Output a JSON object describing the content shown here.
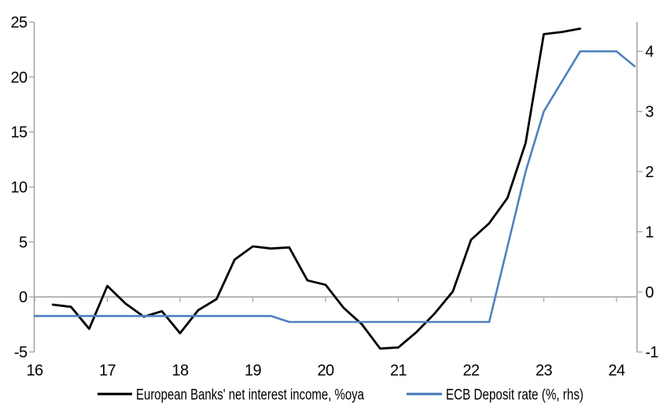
{
  "chart_data": {
    "type": "line",
    "title": "",
    "grid": "zero-line-only",
    "legend_position": "bottom",
    "x_axis": {
      "unit": "year",
      "range": [
        16,
        24.3
      ],
      "tick_values": [
        16,
        17,
        18,
        19,
        20,
        21,
        22,
        23,
        24
      ],
      "ticks": [
        "16",
        "17",
        "18",
        "19",
        "20",
        "21",
        "22",
        "23",
        "24"
      ]
    },
    "left_axis": {
      "range": [
        -5,
        25
      ],
      "tick_values": [
        25,
        20,
        15,
        10,
        5,
        0,
        -5
      ],
      "ticks": [
        "25",
        "20",
        "15",
        "10",
        "5",
        "0",
        "-5"
      ]
    },
    "right_axis": {
      "range": [
        -1,
        4.5
      ],
      "tick_values": [
        4,
        3,
        2,
        1,
        0,
        -1
      ],
      "ticks": [
        "4",
        "3",
        "2",
        "1",
        "0",
        "-1"
      ]
    },
    "series": [
      {
        "name": "European Banks' net interest income, %oya",
        "axis": "left",
        "color": "#000000",
        "x": [
          16.25,
          16.5,
          16.75,
          17.0,
          17.25,
          17.5,
          17.75,
          18.0,
          18.25,
          18.5,
          18.75,
          19.0,
          19.25,
          19.5,
          19.75,
          20.0,
          20.25,
          20.5,
          20.75,
          21.0,
          21.25,
          21.5,
          21.75,
          22.0,
          22.25,
          22.5,
          22.75,
          23.0,
          23.25,
          23.5
        ],
        "values": [
          -0.7,
          -0.9,
          -2.9,
          1.0,
          -0.6,
          -1.8,
          -1.3,
          -3.3,
          -1.2,
          -0.2,
          3.4,
          4.6,
          4.4,
          4.5,
          1.5,
          1.1,
          -1.0,
          -2.5,
          -4.7,
          -4.6,
          -3.2,
          -1.5,
          0.5,
          5.2,
          6.7,
          9.0,
          14.0,
          23.9,
          24.1,
          24.4
        ]
      },
      {
        "name": "ECB Deposit rate (%, rhs)",
        "axis": "right",
        "color": "#4f81bd",
        "x": [
          16.0,
          16.25,
          16.5,
          16.75,
          17.0,
          17.25,
          17.5,
          17.75,
          18.0,
          18.25,
          18.5,
          18.75,
          19.0,
          19.25,
          19.5,
          19.75,
          20.0,
          20.25,
          20.5,
          20.75,
          21.0,
          21.25,
          21.5,
          21.75,
          22.0,
          22.25,
          22.5,
          22.75,
          23.0,
          23.25,
          23.5,
          23.75,
          24.0,
          24.25
        ],
        "values": [
          -0.4,
          -0.4,
          -0.4,
          -0.4,
          -0.4,
          -0.4,
          -0.4,
          -0.4,
          -0.4,
          -0.4,
          -0.4,
          -0.4,
          -0.4,
          -0.4,
          -0.5,
          -0.5,
          -0.5,
          -0.5,
          -0.5,
          -0.5,
          -0.5,
          -0.5,
          -0.5,
          -0.5,
          -0.5,
          -0.5,
          0.75,
          2.0,
          3.0,
          3.5,
          4.0,
          4.0,
          4.0,
          3.75
        ]
      }
    ]
  },
  "colors": {
    "background": "#ffffff",
    "axis": "#a6a6a6",
    "text": "#000000",
    "series_nii": "#000000",
    "series_deposit_rate": "#4f81bd"
  }
}
